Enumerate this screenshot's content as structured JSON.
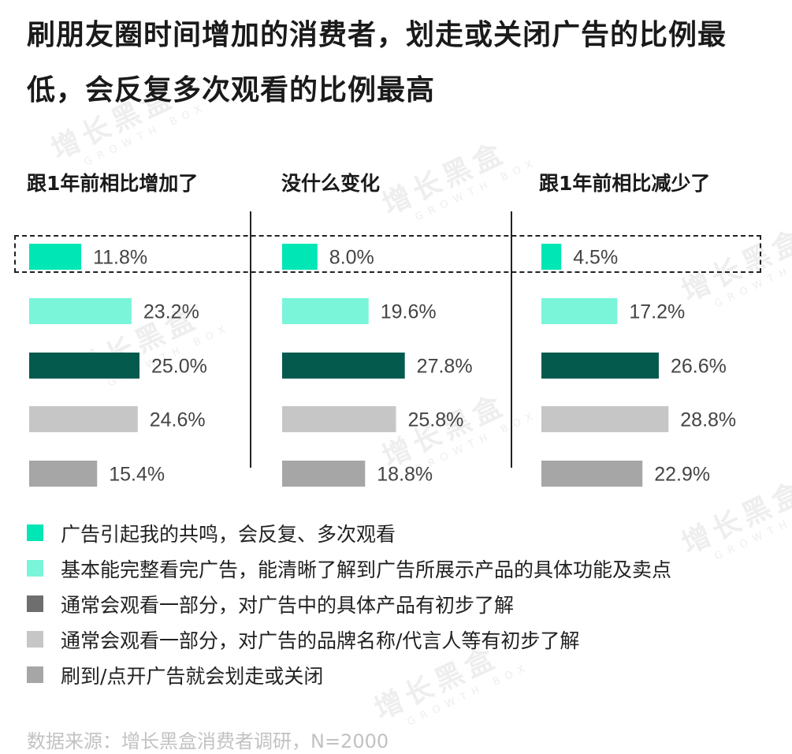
{
  "title": "刷朋友圈时间增加的消费者，划走或关闭广告的比例最低，会反复多次观看的比例最高",
  "watermark": {
    "text": "增长黑盒",
    "sub": "GROWTH BOX"
  },
  "source": "数据来源：增长黑盒消费者调研，N=2000",
  "colors": [
    "#00e6b4",
    "#7af5d9",
    "#055a4e",
    "#c6c6c6",
    "#a6a6a6"
  ],
  "legend_colors": [
    "#00e6b4",
    "#7af5d9",
    "#6e6e6e",
    "#c6c6c6",
    "#a6a6a6"
  ],
  "chart_data": {
    "type": "bar",
    "orientation": "horizontal",
    "panels": [
      {
        "name": "跟1年前相比增加了",
        "values": [
          11.8,
          23.2,
          25.0,
          24.6,
          15.4
        ],
        "labels": [
          "11.8%",
          "23.2%",
          "25.0%",
          "24.6%",
          "15.4%"
        ]
      },
      {
        "name": "没什么变化",
        "values": [
          8.0,
          19.6,
          27.8,
          25.8,
          18.8
        ],
        "labels": [
          "8.0%",
          "19.6%",
          "27.8%",
          "25.8%",
          "18.8%"
        ]
      },
      {
        "name": "跟1年前相比减少了",
        "values": [
          4.5,
          17.2,
          26.6,
          28.8,
          22.9
        ],
        "labels": [
          "4.5%",
          "17.2%",
          "26.6%",
          "28.8%",
          "22.9%"
        ]
      }
    ],
    "categories": [
      "广告引起我的共鸣，会反复、多次观看",
      "基本能完整看完广告，能清晰了解到广告所展示产品的具体功能及卖点",
      "通常会观看一部分，对广告中的具体产品有初步了解",
      "通常会观看一部分，对广告的品牌名称/代言人等有初步了解",
      "刷到/点开广告就会划走或关闭"
    ],
    "highlighted_category_index": 0
  }
}
